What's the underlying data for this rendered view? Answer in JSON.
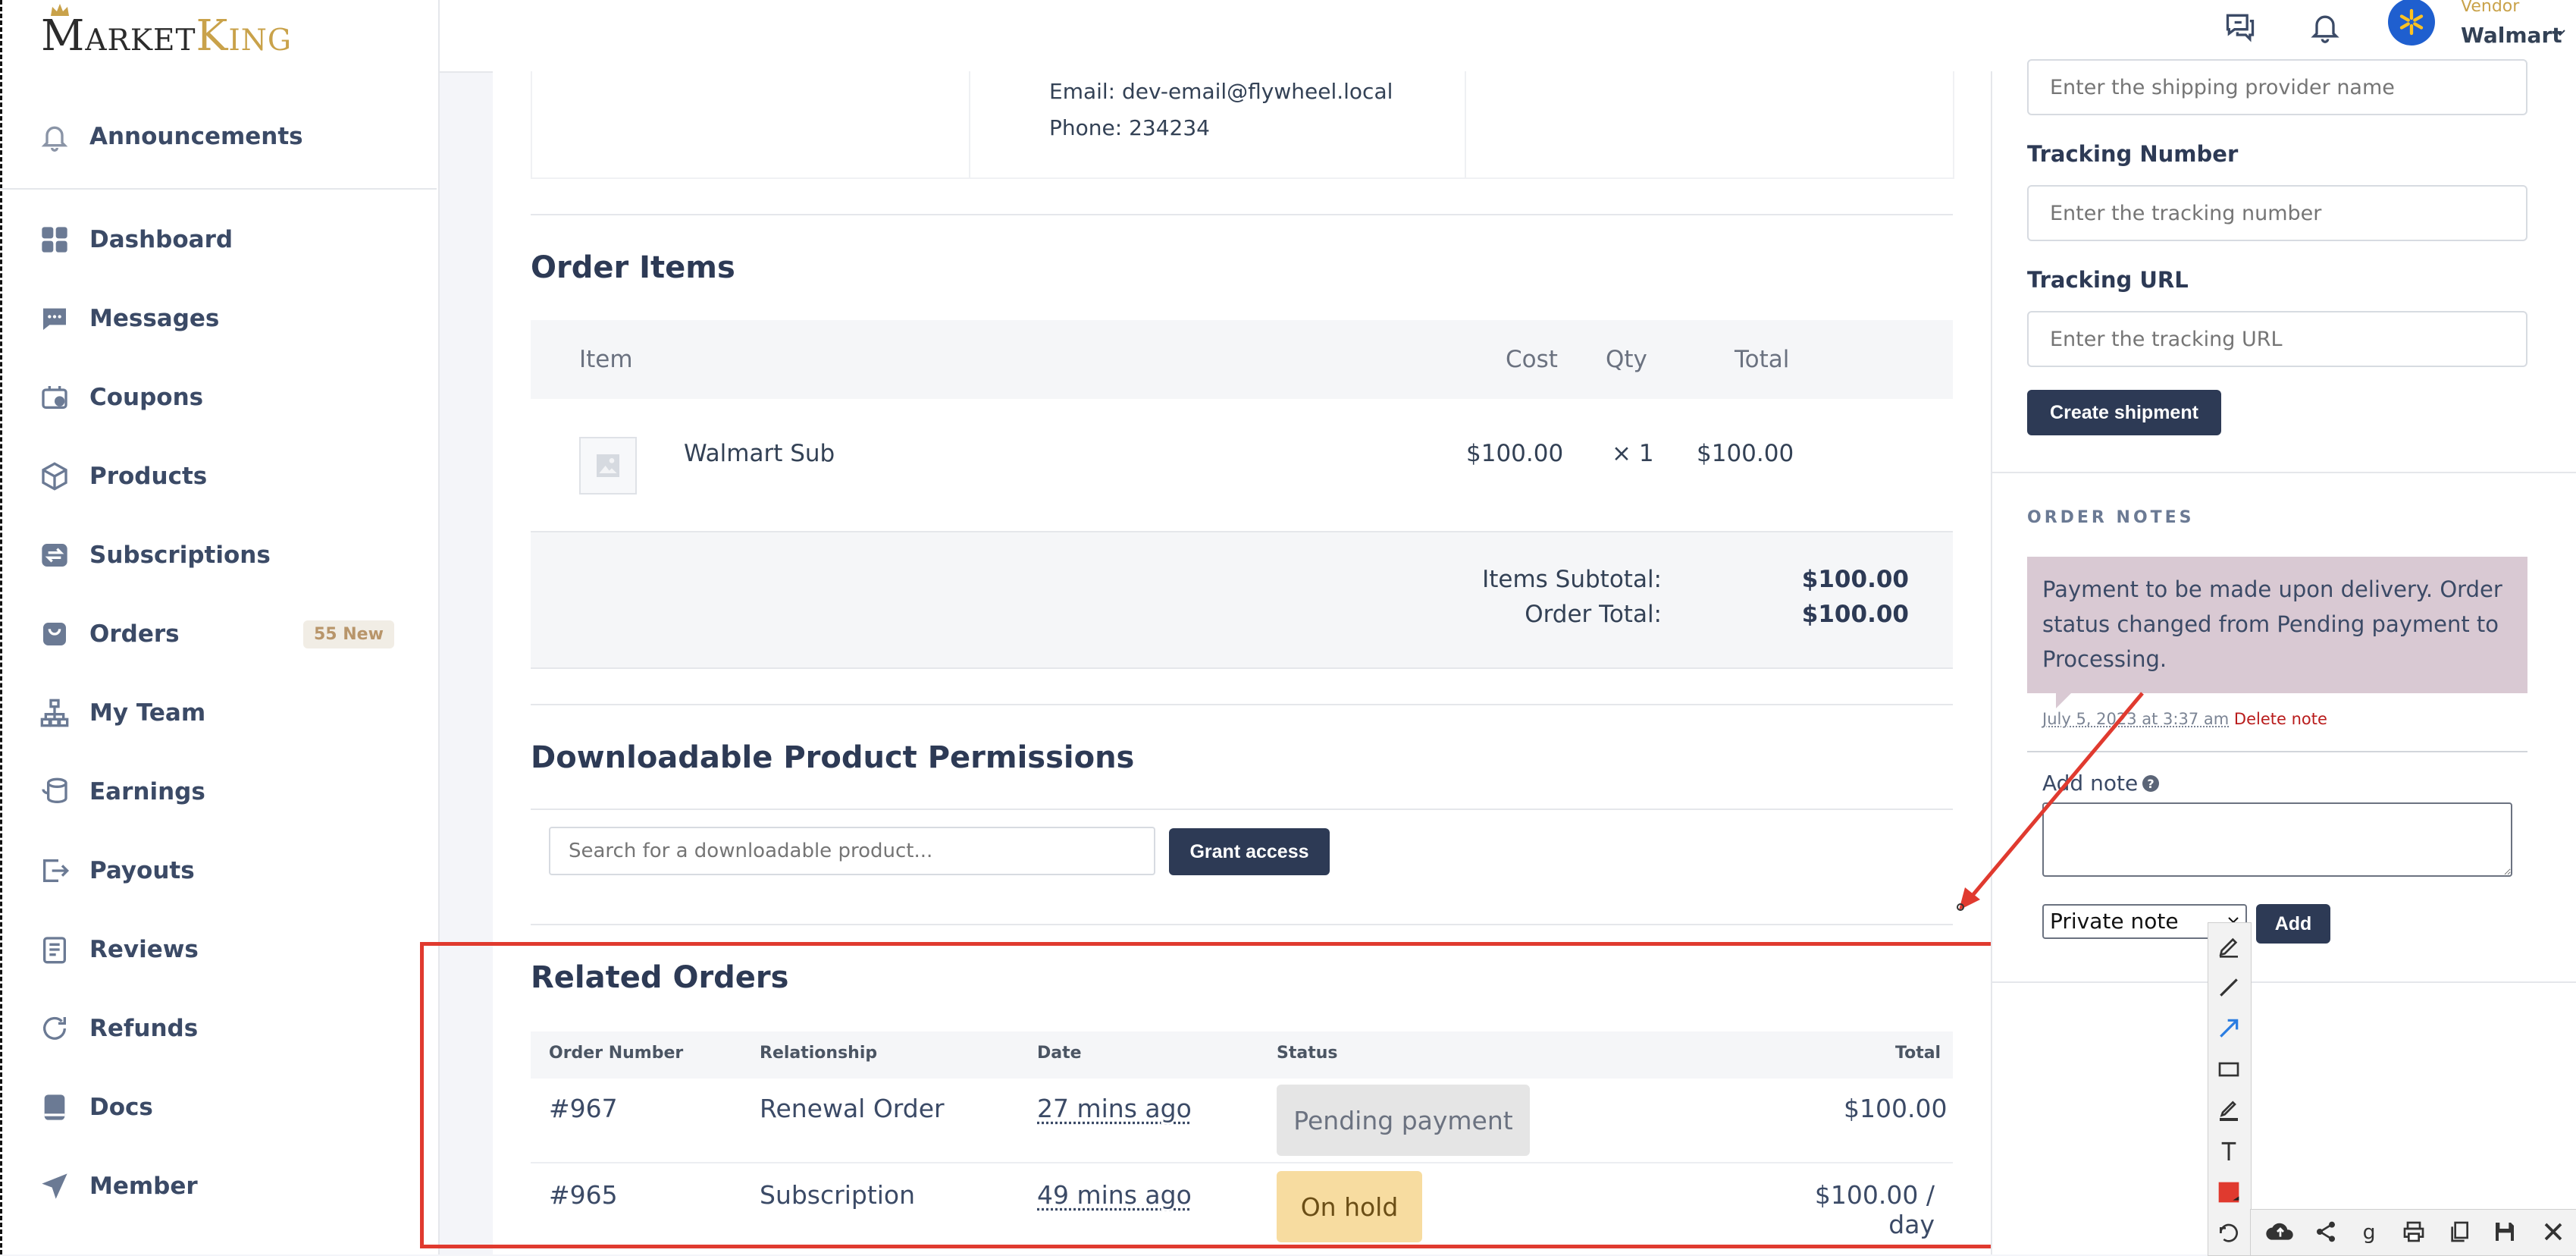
{
  "brand": {
    "logo_first": "Market",
    "logo_second": "King"
  },
  "sidebar": {
    "announcements": "Announcements",
    "items": [
      {
        "label": "Dashboard",
        "icon": "dashboard-icon"
      },
      {
        "label": "Messages",
        "icon": "messages-icon"
      },
      {
        "label": "Coupons",
        "icon": "coupons-icon"
      },
      {
        "label": "Products",
        "icon": "products-icon"
      },
      {
        "label": "Subscriptions",
        "icon": "subscriptions-icon"
      },
      {
        "label": "Orders",
        "icon": "orders-icon",
        "badge": "55 New"
      },
      {
        "label": "My Team",
        "icon": "team-icon"
      },
      {
        "label": "Earnings",
        "icon": "earnings-icon"
      },
      {
        "label": "Payouts",
        "icon": "payouts-icon"
      },
      {
        "label": "Reviews",
        "icon": "reviews-icon"
      },
      {
        "label": "Refunds",
        "icon": "refunds-icon"
      },
      {
        "label": "Docs",
        "icon": "docs-icon"
      },
      {
        "label": "Member",
        "icon": "member-icon"
      }
    ]
  },
  "header": {
    "vendor_role": "Vendor",
    "vendor_name": "Walmart"
  },
  "address": {
    "email": "Email: dev-email@flywheel.local",
    "phone": "Phone: 234234"
  },
  "order_items": {
    "title": "Order Items",
    "columns": {
      "item": "Item",
      "cost": "Cost",
      "qty": "Qty",
      "total": "Total"
    },
    "rows": [
      {
        "name": "Walmart Sub",
        "cost": "$100.00",
        "qty": "× 1",
        "total": "$100.00"
      }
    ],
    "subtotal_label": "Items Subtotal:",
    "subtotal_value": "$100.00",
    "total_label": "Order Total:",
    "total_value": "$100.00"
  },
  "downloads": {
    "title": "Downloadable Product Permissions",
    "search_placeholder": "Search for a downloadable product...",
    "grant_label": "Grant access"
  },
  "related_orders": {
    "title": "Related Orders",
    "columns": {
      "number": "Order Number",
      "relationship": "Relationship",
      "date": "Date",
      "status": "Status",
      "total": "Total"
    },
    "rows": [
      {
        "number": "#967",
        "relationship": "Renewal Order",
        "date": "27 mins ago",
        "status": "Pending payment",
        "total": "$100.00"
      },
      {
        "number": "#965",
        "relationship": "Subscription",
        "date": "49 mins ago",
        "status": "On hold",
        "total": "$100.00 / day"
      }
    ]
  },
  "shipment": {
    "provider_placeholder": "Enter the shipping provider name",
    "tracking_number_label": "Tracking Number",
    "tracking_number_placeholder": "Enter the tracking number",
    "tracking_url_label": "Tracking URL",
    "tracking_url_placeholder": "Enter the tracking URL",
    "create_label": "Create shipment"
  },
  "order_notes": {
    "heading": "ORDER NOTES",
    "note_text": "Payment to be made upon delivery. Order status changed from Pending payment to Processing.",
    "note_date": "July 5, 2023 at 3:37 am",
    "delete_label": "Delete note",
    "add_note_label": "Add note",
    "note_type": "Private note",
    "add_button": "Add"
  },
  "colors": {
    "accent_dark": "#2d3a55",
    "badge_gold": "#b8956a",
    "pending_bg": "#e5e5e5",
    "onhold_bg": "#f7dca0",
    "note_bg": "#d9c9d3",
    "annotation_red": "#e03a2f"
  }
}
